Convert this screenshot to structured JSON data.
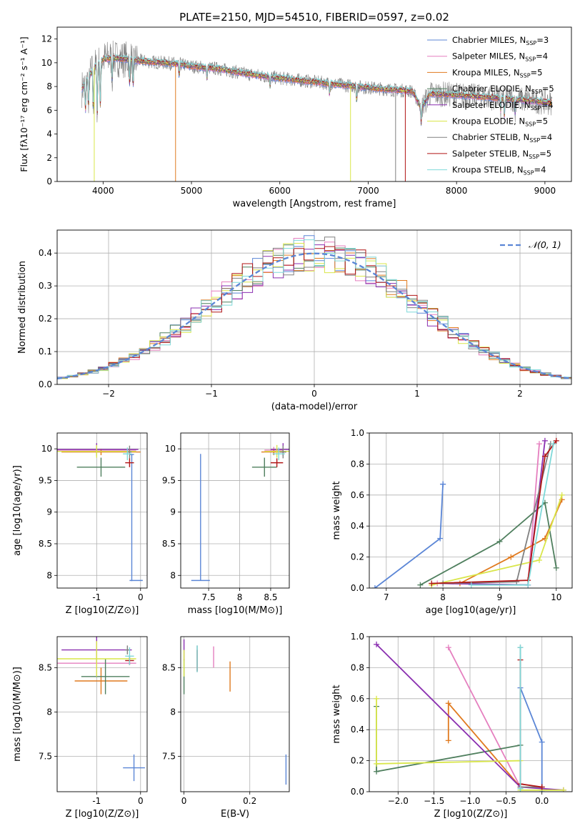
{
  "figure": {
    "title": "PLATE=2150, MJD=54510, FIBERID=0597, z=0.02"
  },
  "colors": {
    "Chabrier MILES": "#5b86d6",
    "Salpeter MILES": "#e57fbf",
    "Kroupa MILES": "#e07a1f",
    "Chabrier ELODIE": "#4f7f5e",
    "Salpeter ELODIE": "#8a2fb0",
    "Kroupa ELODIE": "#d9e64a",
    "Chabrier STELIB": "#808080",
    "Salpeter STELIB": "#b01515",
    "Kroupa STELIB": "#7fd9d9",
    "normal": "#5b86d6",
    "grid": "#b0b0b0"
  },
  "chart_data": [
    {
      "id": "spectrum",
      "type": "line",
      "title": "PLATE=2150, MJD=54510, FIBERID=0597, z=0.02",
      "xlabel": "wavelength [Angstrom, rest frame]",
      "ylabel": "Flux [fλ10⁻¹⁷ erg cm⁻² s⁻¹ A⁻¹]",
      "xlim": [
        3480,
        9300
      ],
      "ylim": [
        0,
        13
      ],
      "xticks": [
        4000,
        5000,
        6000,
        7000,
        8000,
        9000
      ],
      "yticks": [
        0,
        2,
        4,
        6,
        8,
        10,
        12
      ],
      "grid": false,
      "legend_position": "top-right",
      "legend": [
        {
          "label": "Chabrier MILES, N_SSP=3",
          "base": "Chabrier MILES, N",
          "sub": "SSP",
          "tail": "=3",
          "key": "Chabrier MILES"
        },
        {
          "label": "Salpeter MILES, N_SSP=4",
          "base": "Salpeter MILES, N",
          "sub": "SSP",
          "tail": "=4",
          "key": "Salpeter MILES"
        },
        {
          "label": "Kroupa MILES, N_SSP=5",
          "base": "Kroupa MILES, N",
          "sub": "SSP",
          "tail": "=5",
          "key": "Kroupa MILES"
        },
        {
          "label": "Chabrier ELODIE, N_SSP=5",
          "base": "Chabrier ELODIE, N",
          "sub": "SSP",
          "tail": "=5",
          "key": "Chabrier ELODIE"
        },
        {
          "label": "Salpeter ELODIE, N_SSP=4",
          "base": "Salpeter ELODIE, N",
          "sub": "SSP",
          "tail": "=4",
          "key": "Salpeter ELODIE"
        },
        {
          "label": "Kroupa ELODIE, N_SSP=5",
          "base": "Kroupa ELODIE, N",
          "sub": "SSP",
          "tail": "=5",
          "key": "Kroupa ELODIE"
        },
        {
          "label": "Chabrier STELIB, N_SSP=4",
          "base": "Chabrier STELIB, N",
          "sub": "SSP",
          "tail": "=4",
          "key": "Chabrier STELIB"
        },
        {
          "label": "Salpeter STELIB, N_SSP=5",
          "base": "Salpeter STELIB, N",
          "sub": "SSP",
          "tail": "=5",
          "key": "Salpeter STELIB"
        },
        {
          "label": "Kroupa STELIB, N_SSP=4",
          "base": "Kroupa STELIB, N",
          "sub": "SSP",
          "tail": "=4",
          "key": "Kroupa STELIB"
        }
      ],
      "continuum": [
        [
          3760,
          7.8
        ],
        [
          3900,
          9.6
        ],
        [
          4000,
          10.3
        ],
        [
          4100,
          10.4
        ],
        [
          4250,
          10.3
        ],
        [
          4500,
          10.1
        ],
        [
          4860,
          9.9
        ],
        [
          5000,
          9.7
        ],
        [
          5300,
          9.5
        ],
        [
          5600,
          9.1
        ],
        [
          6000,
          8.7
        ],
        [
          6500,
          8.3
        ],
        [
          7000,
          7.9
        ],
        [
          7500,
          7.6
        ],
        [
          7600,
          6.2
        ],
        [
          7700,
          7.4
        ],
        [
          8000,
          7.3
        ],
        [
          8500,
          7.0
        ],
        [
          8700,
          6.9
        ],
        [
          9000,
          6.7
        ],
        [
          9080,
          6.6
        ]
      ],
      "absorption_lines": [
        [
          3800,
          2.8
        ],
        [
          3835,
          3.0
        ],
        [
          3889,
          4.2
        ],
        [
          3934,
          4.6
        ],
        [
          3968,
          4.4
        ],
        [
          4102,
          1.9
        ],
        [
          4300,
          2.2
        ],
        [
          4340,
          2.5
        ],
        [
          4861,
          1.2
        ],
        [
          5175,
          1.0
        ],
        [
          5890,
          0.9
        ],
        [
          6563,
          1.0
        ],
        [
          6870,
          1.4
        ],
        [
          7600,
          1.4
        ],
        [
          8500,
          1.1
        ],
        [
          8542,
          1.6
        ],
        [
          8662,
          1.3
        ]
      ],
      "model_dropouts": [
        {
          "key": "Kroupa ELODIE",
          "x": 3900,
          "to": 0
        },
        {
          "key": "Kroupa MILES",
          "x": 4820,
          "to": 0
        },
        {
          "key": "Kroupa ELODIE",
          "x": 6800,
          "to": 0
        },
        {
          "key": "Chabrier STELIB",
          "x": 7310,
          "to": 0
        },
        {
          "key": "Salpeter STELIB",
          "x": 7420,
          "to": 0
        }
      ]
    },
    {
      "id": "residual_histogram",
      "type": "line",
      "xlabel": "(data-model)/error",
      "ylabel": "Normed distribution",
      "xlim": [
        -2.5,
        2.5
      ],
      "ylim": [
        0,
        0.47
      ],
      "xticks": [
        -2,
        -1,
        0,
        1,
        2
      ],
      "xtick_labels": [
        "−2",
        "−1",
        "0",
        "1",
        "2"
      ],
      "yticks": [
        0,
        0.1,
        0.2,
        0.3,
        0.4
      ],
      "ytick_labels": [
        "0.0",
        "0.1",
        "0.2",
        "0.3",
        "0.4"
      ],
      "grid": true,
      "legend_position": "top-right",
      "legend": [
        {
          "label": "𝒩(0, 1)",
          "key": "normal"
        }
      ],
      "bin_width": 0.1,
      "bin_start": -2.5,
      "normal_curve": {
        "mean": 0,
        "sigma": 1
      }
    },
    {
      "id": "age_vs_Z",
      "type": "scatter",
      "xlabel": "Z [log10(Z/Z⊙)]",
      "ylabel": "age [log10(age/yr)]",
      "xlim": [
        -1.9,
        0.15
      ],
      "ylim": [
        7.8,
        10.25
      ],
      "xticks": [
        -1,
        0
      ],
      "yticks": [
        8.0,
        8.5,
        9.0,
        9.5,
        10.0
      ],
      "grid": true,
      "points": [
        {
          "key": "Chabrier MILES",
          "x": -0.2,
          "y": 9.91,
          "xerr": 0.05,
          "yerr": [
            2.0,
            0.0
          ]
        },
        {
          "key": "Chabrier MILES",
          "x": -0.1,
          "y": 7.92,
          "xerr": 0.15,
          "yerr": 0
        },
        {
          "key": "Salpeter MILES",
          "x": -1.0,
          "y": 9.98,
          "xerr": 0.9,
          "yerr": 0.05
        },
        {
          "key": "Kroupa MILES",
          "x": -0.9,
          "y": 9.95,
          "xerr": 0.9,
          "yerr": 0.05
        },
        {
          "key": "Chabrier ELODIE",
          "x": -0.9,
          "y": 9.71,
          "xerr": 0.55,
          "yerr": 0.15
        },
        {
          "key": "Salpeter ELODIE",
          "x": -1.0,
          "y": 9.99,
          "xerr": 0.95,
          "yerr": 0.1
        },
        {
          "key": "Kroupa ELODIE",
          "x": -1.0,
          "y": 9.96,
          "xerr": 0.9,
          "yerr": 0.1
        },
        {
          "key": "Chabrier STELIB",
          "x": -0.25,
          "y": 9.95,
          "xerr": 0.05,
          "yerr": 0.1
        },
        {
          "key": "Salpeter STELIB",
          "x": -0.25,
          "y": 9.78,
          "xerr": 0.1,
          "yerr": 0.07
        },
        {
          "key": "Kroupa STELIB",
          "x": -0.3,
          "y": 9.92,
          "xerr": 0.1,
          "yerr": 0.1
        }
      ]
    },
    {
      "id": "age_vs_mass",
      "type": "scatter",
      "xlabel": "mass [log10(M/M⊙)]",
      "ylabel": "",
      "xlim": [
        7.05,
        8.8
      ],
      "ylim": [
        7.8,
        10.25
      ],
      "xticks": [
        7.5,
        8.0,
        8.5
      ],
      "yticks": [
        8.0,
        8.5,
        9.0,
        9.5,
        10.0
      ],
      "grid": true,
      "points": [
        {
          "key": "Chabrier MILES",
          "x": 7.37,
          "y": 7.92,
          "xerr": 0.15,
          "yerr": [
            0,
            2.0
          ]
        },
        {
          "key": "Salpeter MILES",
          "x": 8.55,
          "y": 9.98,
          "xerr": 0.15,
          "yerr": 0.05
        },
        {
          "key": "Kroupa MILES",
          "x": 8.55,
          "y": 9.95,
          "xerr": 0.2,
          "yerr": 0.05
        },
        {
          "key": "Chabrier ELODIE",
          "x": 8.4,
          "y": 9.71,
          "xerr": 0.2,
          "yerr": 0.15
        },
        {
          "key": "Salpeter ELODIE",
          "x": 8.7,
          "y": 9.99,
          "xerr": 0.2,
          "yerr": 0.1
        },
        {
          "key": "Kroupa ELODIE",
          "x": 8.6,
          "y": 9.96,
          "xerr": 0.2,
          "yerr": 0.1
        },
        {
          "key": "Chabrier STELIB",
          "x": 8.7,
          "y": 9.95,
          "xerr": 0.05,
          "yerr": 0.1
        },
        {
          "key": "Salpeter STELIB",
          "x": 8.6,
          "y": 9.78,
          "xerr": 0.1,
          "yerr": 0.07
        },
        {
          "key": "Kroupa STELIB",
          "x": 8.63,
          "y": 9.92,
          "xerr": 0.1,
          "yerr": 0.1
        }
      ]
    },
    {
      "id": "mass_weight_vs_age",
      "type": "line",
      "xlabel": "age [log10(age/yr)]",
      "ylabel": "mass weight",
      "xlim": [
        6.7,
        10.28
      ],
      "ylim": [
        0,
        1.0
      ],
      "xticks": [
        7,
        8,
        9,
        10
      ],
      "yticks": [
        0.0,
        0.2,
        0.4,
        0.6,
        0.8,
        1.0
      ],
      "grid": true,
      "series": [
        {
          "key": "Chabrier MILES",
          "points": [
            [
              6.8,
              0.0
            ],
            [
              7.95,
              0.32
            ],
            [
              8.0,
              0.67
            ],
            [
              8.0,
              0.67
            ]
          ]
        },
        {
          "key": "Salpeter MILES",
          "points": [
            [
              7.9,
              0.03
            ],
            [
              9.5,
              0.02
            ],
            [
              9.7,
              0.93
            ]
          ]
        },
        {
          "key": "Kroupa MILES",
          "points": [
            [
              8.3,
              0.03
            ],
            [
              9.2,
              0.2
            ],
            [
              9.8,
              0.32
            ],
            [
              10.1,
              0.57
            ]
          ]
        },
        {
          "key": "Chabrier ELODIE",
          "points": [
            [
              7.6,
              0.02
            ],
            [
              9.0,
              0.3
            ],
            [
              9.8,
              0.55
            ],
            [
              10.0,
              0.13
            ]
          ]
        },
        {
          "key": "Salpeter ELODIE",
          "points": [
            [
              8.0,
              0.03
            ],
            [
              9.5,
              0.02
            ],
            [
              9.8,
              0.95
            ]
          ]
        },
        {
          "key": "Kroupa ELODIE",
          "points": [
            [
              7.8,
              0.02
            ],
            [
              9.7,
              0.18
            ],
            [
              10.1,
              0.6
            ]
          ]
        },
        {
          "key": "Chabrier STELIB",
          "points": [
            [
              8.0,
              0.03
            ],
            [
              9.3,
              0.04
            ],
            [
              9.9,
              0.93
            ]
          ]
        },
        {
          "key": "Salpeter STELIB",
          "points": [
            [
              7.8,
              0.03
            ],
            [
              9.5,
              0.05
            ],
            [
              9.8,
              0.85
            ],
            [
              10.0,
              0.95
            ]
          ]
        },
        {
          "key": "Kroupa STELIB",
          "points": [
            [
              8.5,
              0.02
            ],
            [
              9.5,
              0.02
            ],
            [
              9.95,
              0.93
            ]
          ]
        }
      ]
    },
    {
      "id": "mass_vs_Z",
      "type": "scatter",
      "xlabel": "Z [log10(Z/Z⊙)]",
      "ylabel": "mass [log10(M/M⊙)]",
      "xlim": [
        -1.9,
        0.15
      ],
      "ylim": [
        7.1,
        8.85
      ],
      "xticks": [
        -1,
        0
      ],
      "yticks": [
        7.5,
        8.0,
        8.5
      ],
      "grid": true,
      "points": [
        {
          "key": "Chabrier MILES",
          "x": -0.15,
          "y": 7.37,
          "xerr": 0.25,
          "yerr": 0.15
        },
        {
          "key": "Salpeter MILES",
          "x": -1.0,
          "y": 8.55,
          "xerr": 0.9,
          "yerr": 0.15
        },
        {
          "key": "Kroupa MILES",
          "x": -0.9,
          "y": 8.35,
          "xerr": 0.6,
          "yerr": 0.15
        },
        {
          "key": "Chabrier ELODIE",
          "x": -0.8,
          "y": 8.4,
          "xerr": 0.55,
          "yerr": 0.2
        },
        {
          "key": "Salpeter ELODIE",
          "x": -1.0,
          "y": 8.7,
          "xerr": 0.8,
          "yerr": 0.15
        },
        {
          "key": "Kroupa ELODIE",
          "x": -1.0,
          "y": 8.6,
          "xerr": 0.9,
          "yerr": 0.2
        },
        {
          "key": "Chabrier STELIB",
          "x": -0.3,
          "y": 8.7,
          "xerr": 0.05,
          "yerr": 0.05
        },
        {
          "key": "Salpeter STELIB",
          "x": -0.25,
          "y": 8.58,
          "xerr": 0.1,
          "yerr": 0.05
        },
        {
          "key": "Kroupa STELIB",
          "x": -0.25,
          "y": 8.63,
          "xerr": 0.1,
          "yerr": 0.1
        }
      ]
    },
    {
      "id": "mass_vs_EBV",
      "type": "scatter",
      "xlabel": "E(B-V)",
      "ylabel": "",
      "xlim": [
        -0.01,
        0.32
      ],
      "ylim": [
        7.1,
        8.85
      ],
      "xticks": [
        0.0,
        0.2
      ],
      "yticks": [
        7.5,
        8.0,
        8.5
      ],
      "grid": true,
      "points": [
        {
          "key": "Chabrier MILES",
          "x": 0.31,
          "y": 7.35,
          "xerr": 0,
          "yerr": 0.17
        },
        {
          "key": "Salpeter MILES",
          "x": 0.09,
          "y": 8.62,
          "xerr": 0,
          "yerr": 0.12
        },
        {
          "key": "Kroupa MILES",
          "x": 0.14,
          "y": 8.4,
          "xerr": 0,
          "yerr": 0.17
        },
        {
          "key": "Chabrier ELODIE",
          "x": 0.0,
          "y": 8.4,
          "xerr": 0,
          "yerr": 0.2
        },
        {
          "key": "Salpeter ELODIE",
          "x": 0.0,
          "y": 8.7,
          "xerr": 0,
          "yerr": 0.12
        },
        {
          "key": "Kroupa ELODIE",
          "x": 0.0,
          "y": 8.55,
          "xerr": 0,
          "yerr": 0.15
        },
        {
          "key": "Chabrier STELIB",
          "x": 0.04,
          "y": 8.6,
          "xerr": 0,
          "yerr": 0.15
        },
        {
          "key": "Salpeter STELIB",
          "x": 0.04,
          "y": 8.58,
          "xerr": 0,
          "yerr": 0.12
        },
        {
          "key": "Kroupa STELIB",
          "x": 0.04,
          "y": 8.6,
          "xerr": 0,
          "yerr": 0.15
        }
      ]
    },
    {
      "id": "mass_weight_vs_Z",
      "type": "line",
      "xlabel": "Z [log10(Z/Z⊙)]",
      "ylabel": "mass weight",
      "xlim": [
        -2.4,
        0.42
      ],
      "ylim": [
        0,
        1.0
      ],
      "xticks": [
        -2.0,
        -1.5,
        -1.0,
        -0.5,
        0.0
      ],
      "xtick_labels": [
        "−2.0",
        "−1.5",
        "−1.0",
        "−0.5",
        "0.0"
      ],
      "yticks": [
        0.0,
        0.2,
        0.4,
        0.6,
        0.8,
        1.0
      ],
      "grid": true,
      "series": [
        {
          "key": "Chabrier MILES",
          "points": [
            [
              -0.3,
              0.67
            ],
            [
              0.0,
              0.32
            ],
            [
              0.0,
              0.0
            ]
          ]
        },
        {
          "key": "Salpeter MILES",
          "points": [
            [
              -1.3,
              0.93
            ],
            [
              -0.3,
              0.03
            ]
          ]
        },
        {
          "key": "Kroupa MILES",
          "points": [
            [
              -1.3,
              0.33
            ],
            [
              -1.3,
              0.57
            ],
            [
              -0.3,
              0.03
            ]
          ]
        },
        {
          "key": "Chabrier ELODIE",
          "points": [
            [
              -2.3,
              0.55
            ],
            [
              -2.3,
              0.13
            ],
            [
              -0.3,
              0.3
            ]
          ]
        },
        {
          "key": "Salpeter ELODIE",
          "points": [
            [
              -2.3,
              0.95
            ],
            [
              -0.3,
              0.03
            ],
            [
              0.3,
              0.01
            ]
          ]
        },
        {
          "key": "Kroupa ELODIE",
          "points": [
            [
              -2.3,
              0.6
            ],
            [
              -2.3,
              0.18
            ],
            [
              -0.3,
              0.2
            ],
            [
              -0.3,
              0.01
            ],
            [
              0.3,
              0.01
            ]
          ]
        },
        {
          "key": "Chabrier STELIB",
          "points": [
            [
              -0.3,
              0.93
            ],
            [
              -0.3,
              0.03
            ],
            [
              0.0,
              0.03
            ]
          ]
        },
        {
          "key": "Salpeter STELIB",
          "points": [
            [
              -0.3,
              0.85
            ],
            [
              -0.3,
              0.05
            ],
            [
              0.0,
              0.03
            ]
          ]
        },
        {
          "key": "Kroupa STELIB",
          "points": [
            [
              -0.3,
              0.93
            ],
            [
              -0.3,
              0.02
            ]
          ]
        }
      ]
    }
  ]
}
